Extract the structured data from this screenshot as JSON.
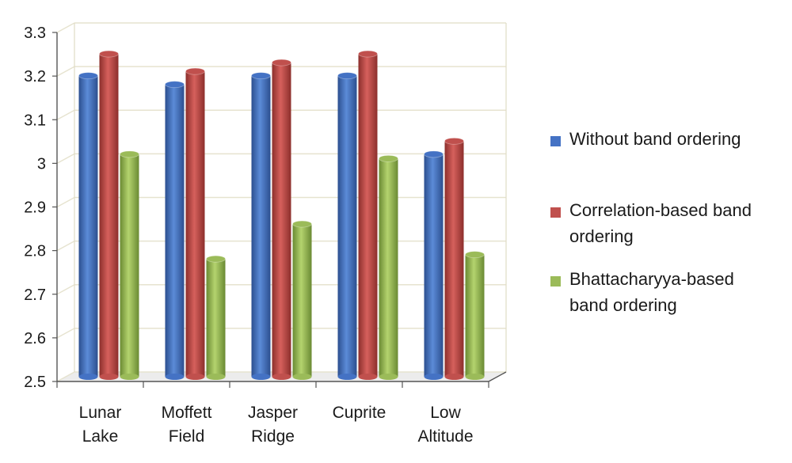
{
  "chart_data": {
    "type": "bar",
    "categories": [
      [
        "Lunar",
        "Lake"
      ],
      [
        "Moffett",
        "Field"
      ],
      [
        "Jasper",
        "Ridge"
      ],
      [
        "Cuprite"
      ],
      [
        "Low",
        "Altitude"
      ]
    ],
    "series": [
      {
        "name": [
          "Without band ordering"
        ],
        "color": "#4472c4",
        "values": [
          3.19,
          3.17,
          3.19,
          3.19,
          3.01
        ]
      },
      {
        "name": [
          "Correlation-based band",
          "ordering"
        ],
        "color": "#c0504d",
        "values": [
          3.24,
          3.2,
          3.22,
          3.24,
          3.04
        ]
      },
      {
        "name": [
          "Bhattacharyya-based",
          "band ordering"
        ],
        "color": "#9bbb59",
        "values": [
          3.01,
          2.77,
          2.85,
          3.0,
          2.78
        ]
      }
    ],
    "y_ticks": [
      "2.5",
      "2.6",
      "2.7",
      "2.8",
      "2.9",
      "3",
      "3.1",
      "3.2",
      "3.3"
    ],
    "ylim": [
      2.5,
      3.3
    ],
    "grid": true,
    "legend_position": "right",
    "title": "",
    "xlabel": "",
    "ylabel": ""
  }
}
